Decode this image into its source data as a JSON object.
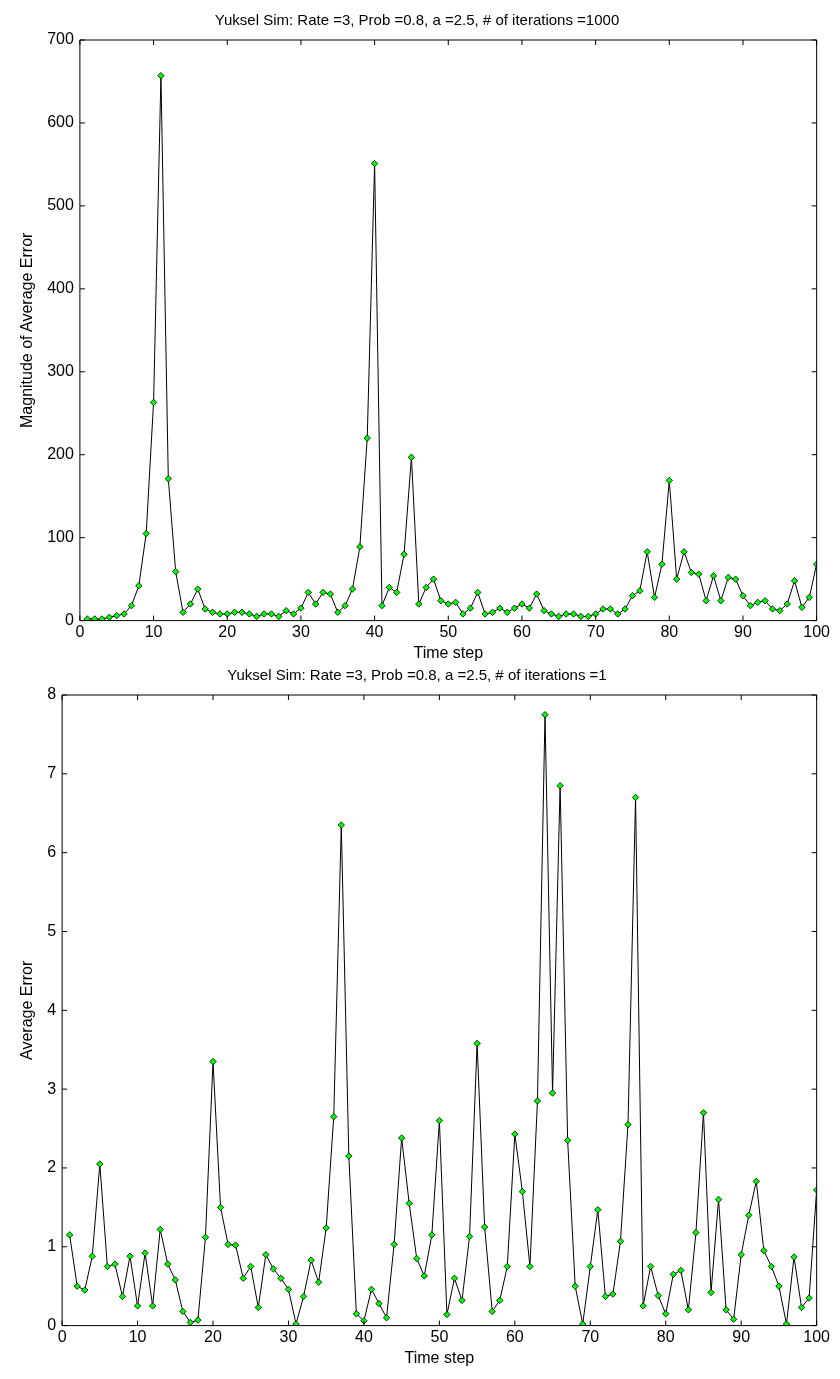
{
  "chart_data": [
    {
      "type": "line",
      "title": "Yuksel Sim: Rate =3, Prob =0.8, a =2.5, # of iterations =1000",
      "xlabel": "Time step",
      "ylabel": "Magnitude of Average Error",
      "x": [
        1,
        2,
        3,
        4,
        5,
        6,
        7,
        8,
        9,
        10,
        11,
        12,
        13,
        14,
        15,
        16,
        17,
        18,
        19,
        20,
        21,
        22,
        23,
        24,
        25,
        26,
        27,
        28,
        29,
        30,
        31,
        32,
        33,
        34,
        35,
        36,
        37,
        38,
        39,
        40,
        41,
        42,
        43,
        44,
        45,
        46,
        47,
        48,
        49,
        50,
        51,
        52,
        53,
        54,
        55,
        56,
        57,
        58,
        59,
        60,
        61,
        62,
        63,
        64,
        65,
        66,
        67,
        68,
        69,
        70,
        71,
        72,
        73,
        74,
        75,
        76,
        77,
        78,
        79,
        80,
        81,
        82,
        83,
        84,
        85,
        86,
        87,
        88,
        89,
        90,
        91,
        92,
        93,
        94,
        95,
        96,
        97,
        98,
        99,
        100
      ],
      "series": [
        {
          "color": "#00ff00",
          "values": [
            2,
            2,
            2,
            4,
            6,
            8,
            18,
            42,
            105,
            263,
            657,
            171,
            59,
            10,
            20,
            38,
            14,
            10,
            8,
            8,
            10,
            10,
            8,
            5,
            8,
            8,
            5,
            12,
            8,
            15,
            34,
            20,
            34,
            32,
            10,
            18,
            38,
            89,
            220,
            551,
            18,
            40,
            34,
            80,
            197,
            20,
            40,
            50,
            24,
            20,
            22,
            8,
            15,
            34,
            8,
            10,
            15,
            10,
            15,
            20,
            15,
            32,
            12,
            8,
            5,
            8,
            8,
            5,
            5,
            8,
            14,
            14,
            8,
            14,
            30,
            36,
            83,
            28,
            68,
            169,
            50,
            83,
            58,
            56,
            24,
            54,
            24,
            52,
            50,
            30,
            18,
            22,
            24,
            14,
            12,
            20,
            48,
            16,
            28,
            68
          ]
        }
      ],
      "xlim": [
        0,
        100
      ],
      "xticks": [
        0,
        10,
        20,
        30,
        40,
        50,
        60,
        70,
        80,
        90,
        100
      ],
      "ylim": [
        0,
        700
      ],
      "yticks": [
        0,
        100,
        200,
        300,
        400,
        500,
        600,
        700
      ],
      "marker": "diamond",
      "line_style": "solid",
      "grid": false,
      "legend": false
    },
    {
      "type": "line",
      "title": "Yuksel Sim: Rate =3, Prob =0.8, a =2.5, # of iterations =1",
      "xlabel": "Time step",
      "ylabel": "Average Error",
      "x": [
        1,
        2,
        3,
        4,
        5,
        6,
        7,
        8,
        9,
        10,
        11,
        12,
        13,
        14,
        15,
        16,
        17,
        18,
        19,
        20,
        21,
        22,
        23,
        24,
        25,
        26,
        27,
        28,
        29,
        30,
        31,
        32,
        33,
        34,
        35,
        36,
        37,
        38,
        39,
        40,
        41,
        42,
        43,
        44,
        45,
        46,
        47,
        48,
        49,
        50,
        51,
        52,
        53,
        54,
        55,
        56,
        57,
        58,
        59,
        60,
        61,
        62,
        63,
        64,
        65,
        66,
        67,
        68,
        69,
        70,
        71,
        72,
        73,
        74,
        75,
        76,
        77,
        78,
        79,
        80,
        81,
        82,
        83,
        84,
        85,
        86,
        87,
        88,
        89,
        90,
        91,
        92,
        93,
        94,
        95,
        96,
        97,
        98,
        99,
        100
      ],
      "series": [
        {
          "color": "#00ff00",
          "values": [
            1.15,
            0.5,
            0.45,
            0.88,
            2.05,
            0.75,
            0.78,
            0.37,
            0.88,
            0.25,
            0.92,
            0.25,
            1.22,
            0.78,
            0.58,
            0.18,
            0.04,
            0.07,
            1.12,
            3.35,
            1.5,
            1.03,
            1.02,
            0.6,
            0.75,
            0.23,
            0.9,
            0.72,
            0.6,
            0.46,
            0.02,
            0.37,
            0.83,
            0.55,
            1.24,
            2.65,
            6.35,
            2.15,
            0.15,
            0.06,
            0.46,
            0.28,
            0.1,
            1.03,
            2.38,
            1.55,
            0.85,
            0.63,
            1.15,
            2.6,
            0.14,
            0.6,
            0.32,
            1.13,
            3.58,
            1.25,
            0.18,
            0.32,
            0.75,
            2.43,
            1.7,
            0.75,
            2.85,
            7.75,
            2.95,
            6.85,
            2.35,
            0.5,
            0.02,
            0.75,
            1.47,
            0.37,
            0.4,
            1.07,
            2.55,
            6.7,
            0.25,
            0.75,
            0.38,
            0.15,
            0.65,
            0.7,
            0.2,
            1.18,
            2.7,
            0.42,
            1.6,
            0.2,
            0.08,
            0.9,
            1.4,
            1.83,
            0.95,
            0.75,
            0.5,
            0.02,
            0.87,
            0.23,
            0.35,
            1.72
          ]
        }
      ],
      "xlim": [
        0,
        100
      ],
      "xticks": [
        0,
        10,
        20,
        30,
        40,
        50,
        60,
        70,
        80,
        90,
        100
      ],
      "ylim": [
        0,
        8
      ],
      "yticks": [
        0,
        1,
        2,
        3,
        4,
        5,
        6,
        7,
        8
      ],
      "marker": "diamond",
      "line_style": "solid",
      "grid": false,
      "legend": false
    }
  ]
}
